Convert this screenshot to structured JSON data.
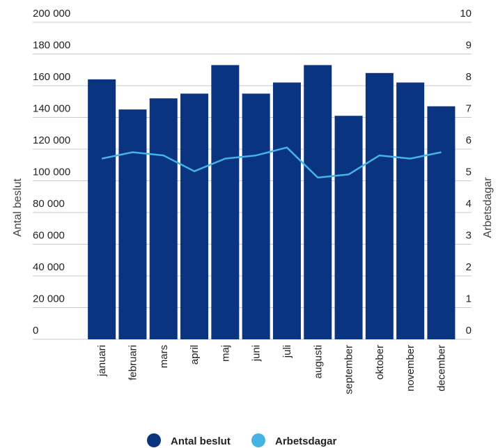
{
  "chart_data": {
    "type": "bar",
    "title": "",
    "categories": [
      "januari",
      "februari",
      "mars",
      "april",
      "maj",
      "juni",
      "juli",
      "augusti",
      "september",
      "oktober",
      "november",
      "december"
    ],
    "series": [
      {
        "name": "Antal beslut",
        "type": "bar",
        "axis": "left",
        "color": "#0a3380",
        "values": [
          164000,
          145000,
          152000,
          155000,
          173000,
          155000,
          162000,
          173000,
          141000,
          168000,
          162000,
          147000
        ]
      },
      {
        "name": "Arbetsdagar",
        "type": "line",
        "axis": "right",
        "color": "#45b3e3",
        "values": [
          5.7,
          5.9,
          5.8,
          5.3,
          5.7,
          5.8,
          6.05,
          5.1,
          5.2,
          5.8,
          5.7,
          5.9
        ]
      }
    ],
    "ylabel": "Antal beslut",
    "y2label": "Arbetsdagar",
    "ylim": [
      0,
      200000
    ],
    "y2lim": [
      0,
      10
    ],
    "yticks": [
      "0",
      "20 000",
      "40 000",
      "60 000",
      "80 000",
      "100 000",
      "120 000",
      "140 000",
      "160 000",
      "180 000",
      "200 000"
    ],
    "y2ticks": [
      "0",
      "1",
      "2",
      "3",
      "4",
      "5",
      "6",
      "7",
      "8",
      "9",
      "10"
    ],
    "grid": true,
    "legend_position": "bottom-center"
  }
}
